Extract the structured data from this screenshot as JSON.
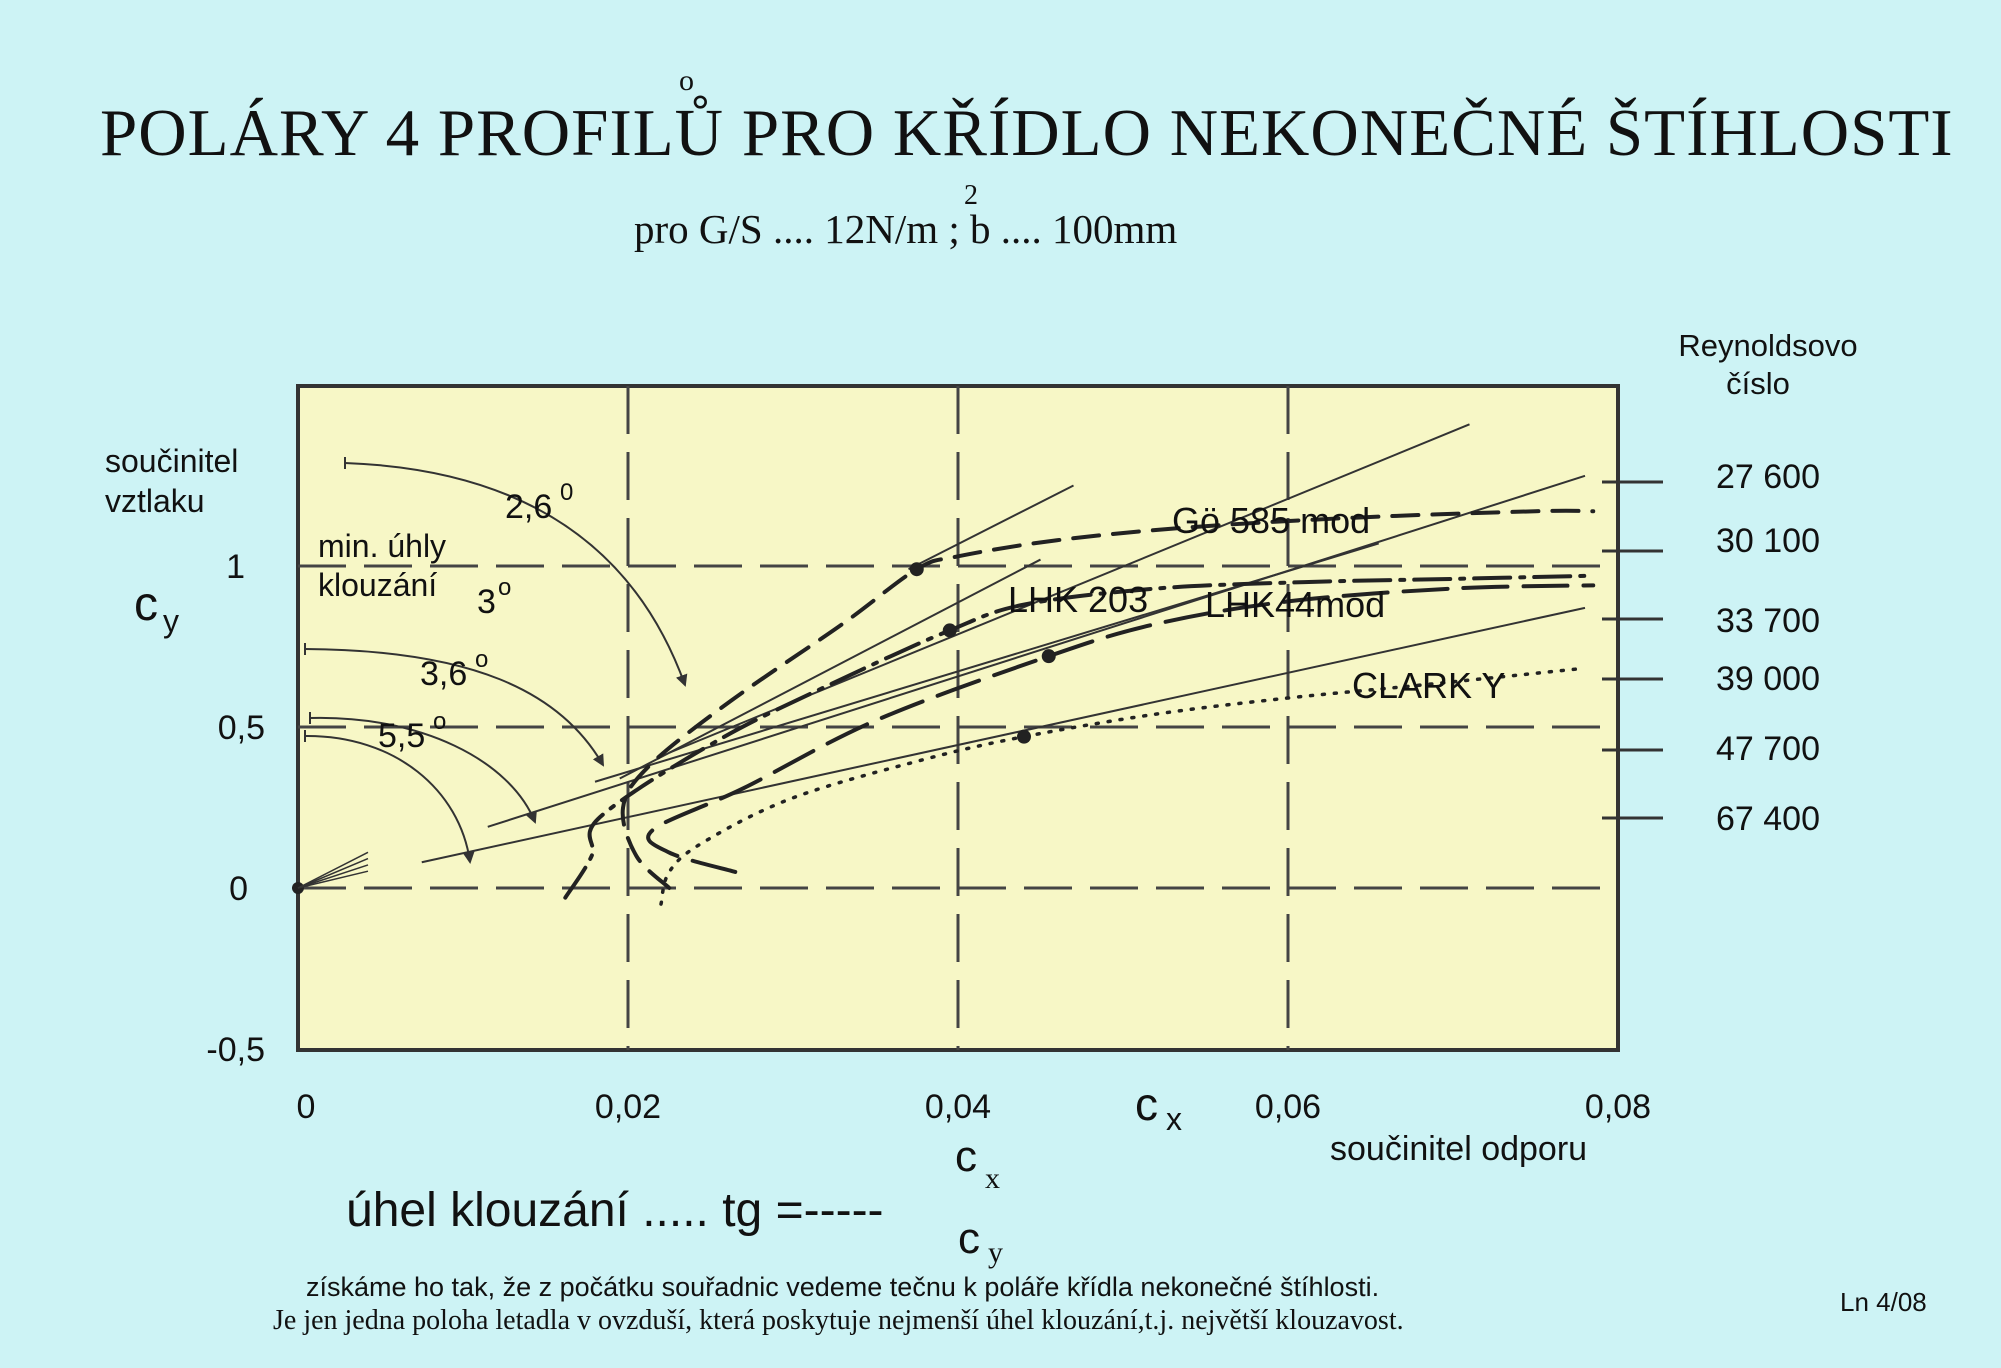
{
  "page": {
    "title": "POLÁRY 4 PROFILŮ PRO KŘÍDLO NEKONEČNÉ ŠTÍHLOSTI",
    "title_ring": "o",
    "subtitle": "pro G/S .... 12N/m ; b .... 100mm",
    "subtitle_sup": "2",
    "reynolds_title_1": "Reynoldsovo",
    "reynolds_title_2": "číslo",
    "reynolds_values": [
      "27 600",
      "30 100",
      "33 700",
      "39 000",
      "47 700",
      "67 400"
    ],
    "formula_text": "úhel klouzání ..... tg =-----",
    "formula_num": "c",
    "formula_num_sub": "x",
    "formula_den": "c",
    "formula_den_sub": "y",
    "note_1": "získáme ho tak, že z počátku souřadnic vedeme tečnu k poláře křídla nekonečné štíhlosti.",
    "note_2": "Je jen jedna poloha letadla v ovzduší, která poskytuje nejmenší úhel klouzání,t.j. největší klouzavost.",
    "page_id": "Ln 4/08"
  },
  "chart_data": {
    "type": "line",
    "title": "POLÁRY 4 PROFILŮ PRO KŘÍDLO NEKONEČNÉ ŠTÍHLOSTI",
    "xlabel_symbol": "c",
    "xlabel_sub": "x",
    "xlabel_text": "součinitel odporu",
    "ylabel_symbol": "c",
    "ylabel_sub": "y",
    "ylabel_text_1": "součinitel",
    "ylabel_text_2": "vztlaku",
    "xlim": [
      0,
      0.08
    ],
    "ylim": [
      -0.5,
      1.5
    ],
    "x_ticks": [
      0,
      0.02,
      0.04,
      0.06,
      0.08
    ],
    "x_tick_labels": [
      "0",
      "0,02",
      "0,04",
      "0,06",
      "0,08"
    ],
    "y_ticks": [
      -0.5,
      0,
      0.5,
      1
    ],
    "y_tick_labels": [
      "-0,5",
      "0",
      "0,5",
      "1"
    ],
    "grid": true,
    "background": "#f7f7c6",
    "annotation_title_1": "min. úhly",
    "annotation_title_2": "klouzání",
    "angles": [
      {
        "label": "2,6",
        "sup": "0",
        "slope": 0.023
      },
      {
        "label": "3",
        "sup": "o",
        "slope": 0.026
      },
      {
        "label": "3,6",
        "sup": "o",
        "slope": 0.032
      },
      {
        "label": "5,5",
        "sup": "o",
        "slope": 0.05
      }
    ],
    "series": [
      {
        "name": "Gö 585 mod",
        "style": "dashed",
        "tangent_point": [
          0.0375,
          0.99
        ],
        "x": [
          0.0225,
          0.0205,
          0.0197,
          0.0213,
          0.0262,
          0.033,
          0.0375,
          0.04,
          0.046,
          0.054,
          0.064,
          0.075,
          0.0785
        ],
        "y": [
          0.0,
          0.1,
          0.25,
          0.38,
          0.58,
          0.82,
          0.99,
          1.03,
          1.08,
          1.12,
          1.15,
          1.17,
          1.17
        ]
      },
      {
        "name": "LHK 203",
        "style": "dashdot",
        "tangent_point": [
          0.0395,
          0.8
        ],
        "x": [
          0.0162,
          0.0178,
          0.0183,
          0.0255,
          0.033,
          0.0395,
          0.044,
          0.052,
          0.061,
          0.07,
          0.0785
        ],
        "y": [
          -0.03,
          0.1,
          0.22,
          0.46,
          0.65,
          0.8,
          0.88,
          0.93,
          0.95,
          0.96,
          0.97
        ]
      },
      {
        "name": "LHK44mod",
        "style": "longdash",
        "tangent_point": [
          0.0455,
          0.72
        ],
        "x": [
          0.0265,
          0.0225,
          0.0215,
          0.027,
          0.035,
          0.0455,
          0.052,
          0.06,
          0.07,
          0.0785
        ],
        "y": [
          0.05,
          0.11,
          0.18,
          0.31,
          0.52,
          0.72,
          0.82,
          0.89,
          0.93,
          0.94
        ]
      },
      {
        "name": "CLARK Y",
        "style": "dotted",
        "tangent_point": [
          0.044,
          0.47
        ],
        "x": [
          0.022,
          0.0225,
          0.0245,
          0.03,
          0.038,
          0.044,
          0.052,
          0.06,
          0.068,
          0.0775
        ],
        "y": [
          -0.05,
          0.05,
          0.14,
          0.28,
          0.4,
          0.47,
          0.54,
          0.59,
          0.63,
          0.68
        ]
      }
    ]
  }
}
